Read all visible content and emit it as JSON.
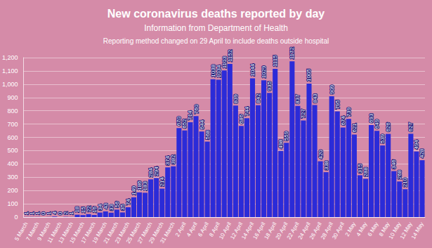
{
  "chart_data": {
    "type": "bar",
    "title": "New coronavirus deaths reported by day",
    "subtitle": "Information from Department of Health",
    "annotations": [
      "Reporting method changed on 29 April to include deaths outside hospital"
    ],
    "categories": [
      "5 March",
      null,
      "7 March",
      null,
      "9 March",
      null,
      "11 March",
      null,
      "13 March",
      null,
      "15 March",
      null,
      "17 March",
      null,
      "19 March",
      null,
      "21 March",
      null,
      "23 March",
      null,
      "25 March",
      null,
      "27 March",
      null,
      "29 March",
      null,
      "31 March",
      null,
      "2 April",
      null,
      "4 April",
      null,
      "6 April",
      null,
      "8 April",
      null,
      "10 April",
      null,
      "12 April",
      null,
      "14 April",
      null,
      "16 April",
      null,
      "18 April",
      null,
      "20 April",
      null,
      "22 April",
      null,
      "24 April",
      null,
      "26 April",
      null,
      "28 April",
      null,
      "30 April",
      null,
      "2 May",
      null,
      "4 May",
      null,
      "6 May",
      null,
      "8 May",
      null,
      "10 May",
      null,
      "12 May",
      null,
      "14 May"
    ],
    "values": [
      1,
      1,
      1,
      0,
      1,
      4,
      0,
      2,
      1,
      18,
      15,
      22,
      16,
      34,
      43,
      33,
      56,
      35,
      74,
      149,
      186,
      183,
      284,
      294,
      214,
      374,
      382,
      670,
      652,
      714,
      760,
      644,
      568,
      1038,
      1034,
      1103,
      1152,
      839,
      686,
      744,
      1044,
      842,
      1029,
      935,
      1115,
      498,
      559,
      1172,
      837,
      727,
      1005,
      843,
      420,
      338,
      909,
      795,
      674,
      739,
      621,
      315,
      288,
      693,
      649,
      539,
      626,
      346,
      268,
      210,
      627,
      494,
      428
    ],
    "color": "#2b2bd8",
    "ylim": [
      0,
      1200
    ],
    "yticks": [
      0,
      100,
      200,
      300,
      400,
      500,
      600,
      700,
      800,
      900,
      1000,
      1100,
      1200
    ],
    "grid": true,
    "data_labels": true
  }
}
